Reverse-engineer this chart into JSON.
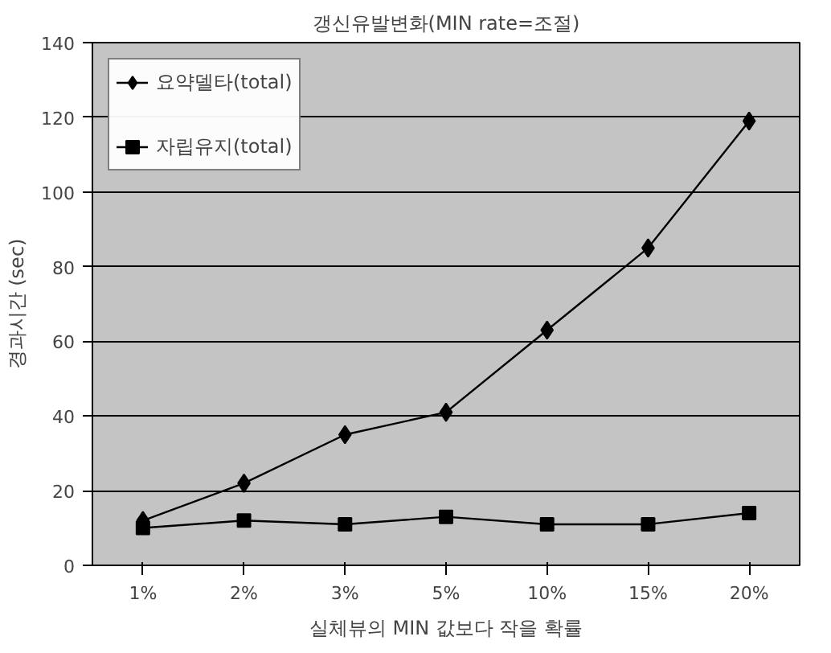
{
  "chart_data": {
    "type": "line",
    "title": "갱신유발변화(MIN rate=조절)",
    "xlabel": "실체뷰의 MIN 값보다 작을 확률",
    "ylabel": "경과시간 (sec)",
    "categories": [
      "1%",
      "2%",
      "3%",
      "5%",
      "10%",
      "15%",
      "20%"
    ],
    "series": [
      {
        "name": "요약델타(total)",
        "color": "#000000",
        "marker": "diamond",
        "values": [
          12,
          22,
          35,
          41,
          63,
          85,
          119
        ]
      },
      {
        "name": "자립유지(total)",
        "color": "#000000",
        "marker": "square",
        "values": [
          10,
          12,
          11,
          13,
          11,
          11,
          14
        ]
      }
    ],
    "ylim": [
      0,
      140
    ],
    "yticks": [
      0,
      20,
      40,
      60,
      80,
      100,
      120,
      140
    ],
    "grid": "y",
    "legend": "top left",
    "line_style": "solid"
  }
}
